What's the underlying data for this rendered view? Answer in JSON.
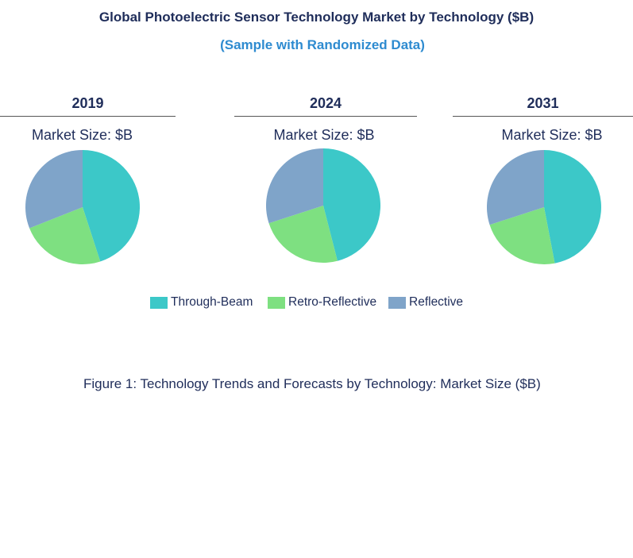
{
  "chart_data": {
    "type": "pie",
    "title": "Global Photoelectric Sensor Technology Market by Technology ($B)",
    "subtitle": "(Sample with Randomized Data)",
    "caption": "Figure 1: Technology Trends and Forecasts by Technology: Market Size ($B)",
    "legend": {
      "placement": "bottom-center",
      "entries": [
        "Through-Beam",
        "Retro-Reflective",
        "Reflective"
      ]
    },
    "series_colors": {
      "Through-Beam": "#3cc8c8",
      "Retro-Reflective": "#7ee081",
      "Reflective": "#7fa4c9"
    },
    "pies": [
      {
        "year": "2019",
        "subtitle": "Market Size: $B",
        "slices": [
          {
            "name": "Through-Beam",
            "value": 45
          },
          {
            "name": "Retro-Reflective",
            "value": 24
          },
          {
            "name": "Reflective",
            "value": 31
          }
        ]
      },
      {
        "year": "2024",
        "subtitle": "Market Size: $B",
        "slices": [
          {
            "name": "Through-Beam",
            "value": 46
          },
          {
            "name": "Retro-Reflective",
            "value": 24
          },
          {
            "name": "Reflective",
            "value": 30
          }
        ]
      },
      {
        "year": "2031",
        "subtitle": "Market Size: $B",
        "slices": [
          {
            "name": "Through-Beam",
            "value": 47
          },
          {
            "name": "Retro-Reflective",
            "value": 23
          },
          {
            "name": "Reflective",
            "value": 30
          }
        ]
      }
    ]
  }
}
